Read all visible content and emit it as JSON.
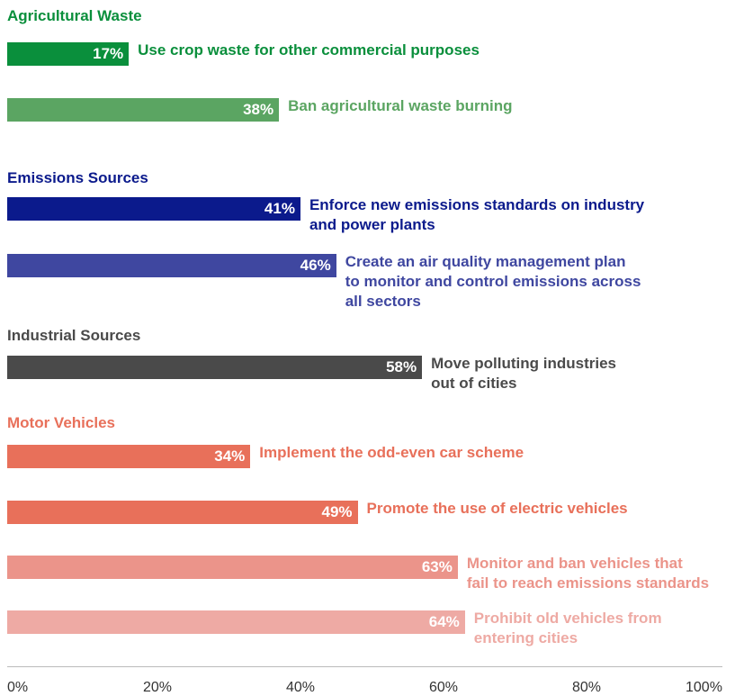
{
  "chart_data": {
    "type": "bar",
    "orientation": "horizontal",
    "groups": [
      {
        "name": "Agricultural Waste",
        "color": "#0a8f3c",
        "categories": [
          "Use crop waste for other commercial purposes",
          "Ban agricultural waste burning"
        ],
        "values": [
          17,
          38
        ],
        "value_labels": [
          "17%",
          "38%"
        ],
        "colors": [
          "#0a8f3c",
          "#5ba562"
        ]
      },
      {
        "name": "Emissions Sources",
        "color": "#0b1a8c",
        "categories": [
          "Enforce new emissions standards on industry\nand power plants",
          "Create an air quality management plan\nto monitor and control emissions across\nall sectors"
        ],
        "values": [
          41,
          46
        ],
        "value_labels": [
          "41%",
          "46%"
        ],
        "colors": [
          "#0b1a8c",
          "#3f47a0"
        ]
      },
      {
        "name": "Industrial Sources",
        "color": "#4a4a4a",
        "categories": [
          "Move polluting industries\nout of cities"
        ],
        "values": [
          58
        ],
        "value_labels": [
          "58%"
        ],
        "colors": [
          "#4a4a4a"
        ]
      },
      {
        "name": "Motor Vehicles",
        "color": "#e8705a",
        "categories": [
          "Implement the odd-even car scheme",
          "Promote the use of electric vehicles",
          "Monitor and ban vehicles that\nfail to reach emissions standards",
          "Prohibit old vehicles from\nentering cities"
        ],
        "values": [
          34,
          49,
          63,
          64
        ],
        "value_labels": [
          "34%",
          "49%",
          "63%",
          "64%"
        ],
        "colors": [
          "#e8705a",
          "#e8705a",
          "#eb948a",
          "#eeaaa4"
        ]
      }
    ],
    "xlim": [
      0,
      100
    ],
    "xticks": [
      {
        "value": 0,
        "label": "0%"
      },
      {
        "value": 20,
        "label": "20%"
      },
      {
        "value": 40,
        "label": "40%"
      },
      {
        "value": 60,
        "label": "60%"
      },
      {
        "value": 80,
        "label": "80%"
      },
      {
        "value": 100,
        "label": "100%"
      }
    ]
  }
}
